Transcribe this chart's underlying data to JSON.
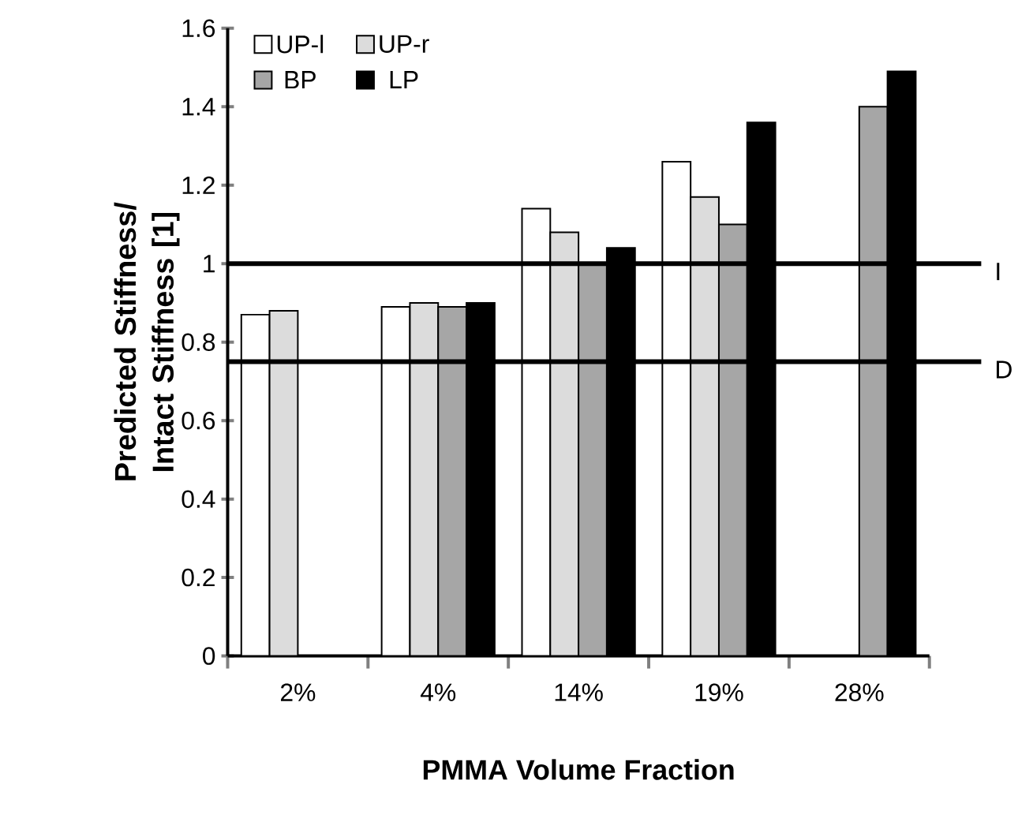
{
  "chart_data": {
    "type": "bar",
    "xlabel": "PMMA Volume Fraction",
    "ylabel": "Predicted Stiffness/ Intact Stiffness [1]",
    "categories": [
      "2%",
      "4%",
      "14%",
      "19%",
      "28%"
    ],
    "series": [
      {
        "name": "UP-l",
        "color": "#ffffff",
        "values": [
          0.87,
          0.89,
          1.14,
          1.26,
          null
        ]
      },
      {
        "name": "UP-r",
        "color": "#dcdcdc",
        "values": [
          0.88,
          0.9,
          1.08,
          1.17,
          null
        ]
      },
      {
        "name": "BP",
        "color": "#a6a6a6",
        "values": [
          null,
          0.89,
          1.0,
          1.1,
          1.4
        ]
      },
      {
        "name": "LP",
        "color": "#000000",
        "values": [
          null,
          0.9,
          1.04,
          1.36,
          1.49
        ]
      }
    ],
    "ylim": [
      0,
      1.6
    ],
    "yticks": [
      0,
      0.2,
      0.4,
      0.6,
      0.8,
      1,
      1.2,
      1.4,
      1.6
    ],
    "ref_lines": [
      {
        "axis": "y",
        "value": 1,
        "label": "I"
      },
      {
        "axis": "y",
        "value": 0.75,
        "label": "D"
      }
    ],
    "legend": "top left"
  }
}
